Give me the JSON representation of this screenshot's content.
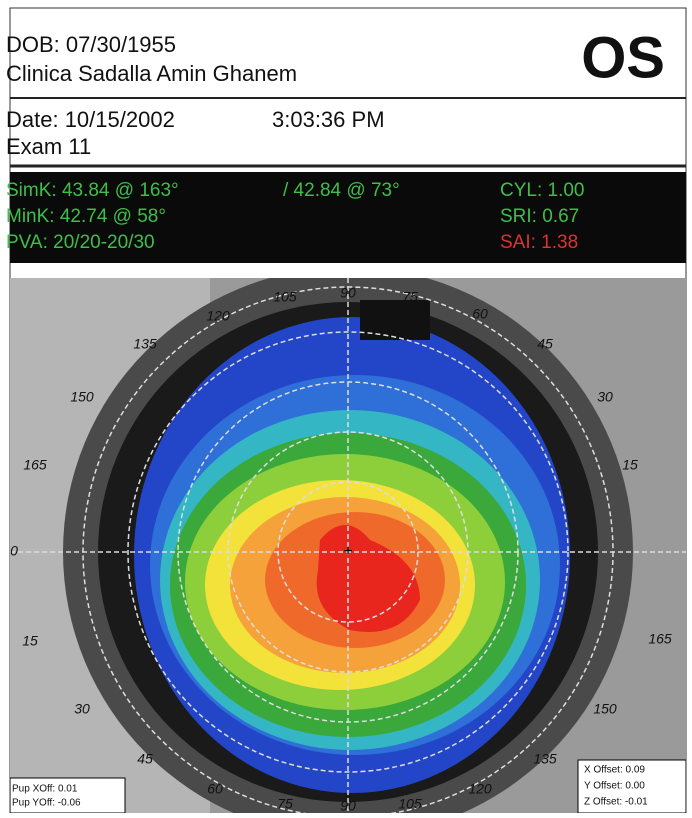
{
  "header": {
    "dob": "DOB: 07/30/1955",
    "clinic": "Clinica Sadalla Amin Ghanem",
    "eye": "OS"
  },
  "exam": {
    "date": "Date: 10/15/2002",
    "time": "3:03:36 PM",
    "number": "Exam 11"
  },
  "indices": {
    "simk": "SimK: 43.84 @ 163°",
    "simk2": "/ 42.84 @ 73°",
    "mink": "MinK: 42.74 @  58°",
    "pva": "PVA: 20/20-20/30",
    "cyl": "CYL: 1.00",
    "sri": "SRI: 0.67",
    "sai": "SAI: 1.38"
  },
  "map": {
    "angle_labels": [
      "105",
      "90",
      "75",
      "60",
      "120",
      "45",
      "135",
      "30",
      "150",
      "15",
      "165",
      "0",
      "165",
      "15",
      "150",
      "30",
      "135",
      "45",
      "120",
      "60",
      "75",
      "90",
      "105"
    ],
    "pupil_offsets": [
      "Pup XOff: 0.01",
      "Pup YOff: -0.06"
    ],
    "offsets": [
      "X Offset: 0.09",
      "Y Offset: 0.00",
      "Z Offset: -0.01"
    ]
  }
}
